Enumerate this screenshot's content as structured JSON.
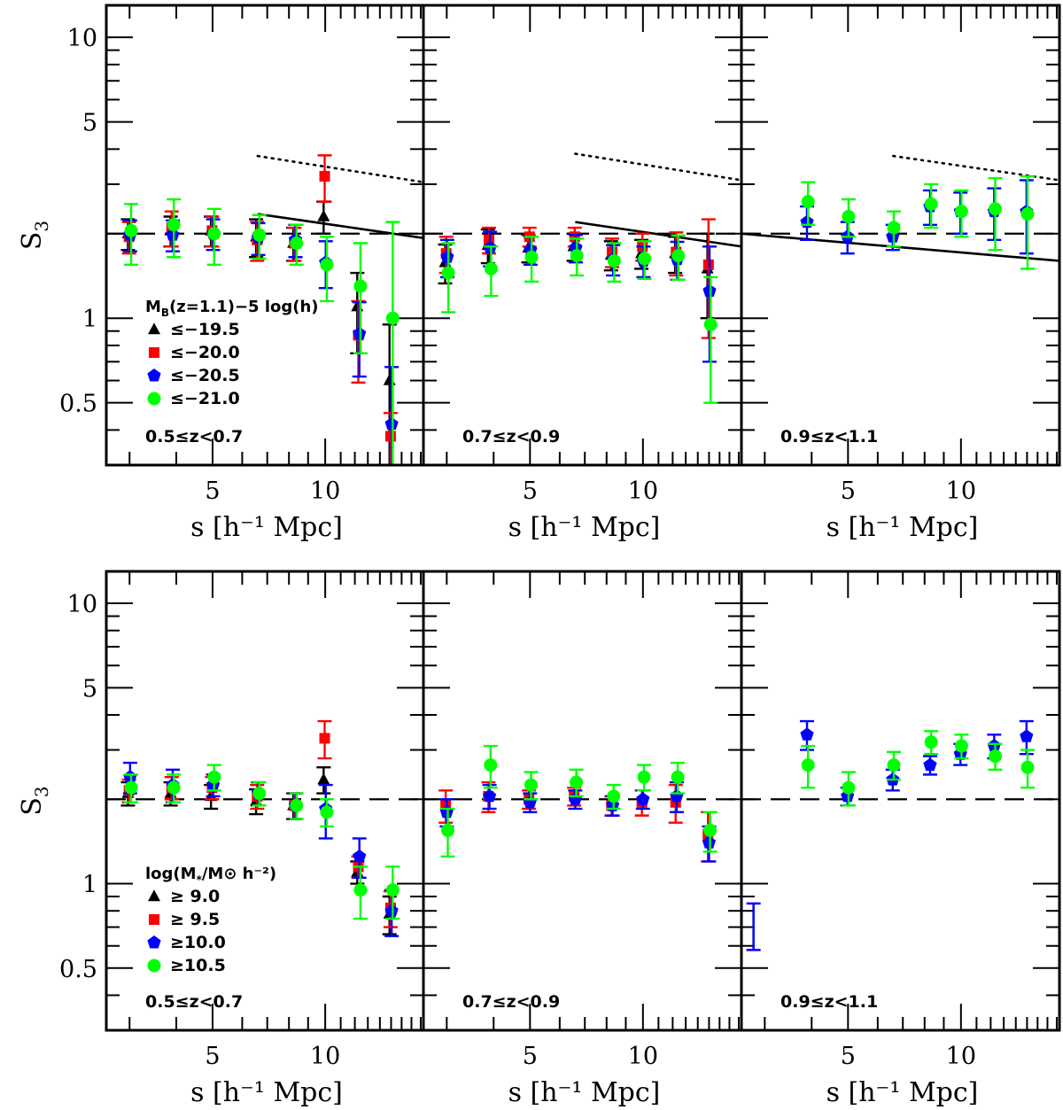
{
  "chart_data": [
    {
      "type": "scatter",
      "panel": "top-left",
      "redshift_label": "0.5≤z<0.7",
      "ylabel": "S",
      "ylabel_sub": "3",
      "xlabel": "s [h⁻¹ Mpc]",
      "xlim": [
        2.6,
        18.3
      ],
      "ylim": [
        0.3,
        13.0
      ],
      "xscale": "log",
      "yscale": "log",
      "x_ticks": [
        "5",
        "10"
      ],
      "y_ticks": [
        "0.5",
        "1",
        "5",
        "10"
      ],
      "legend": {
        "title": "M",
        "title_sub": "B",
        "title_rest": "(z=1.1)−5 log(h)",
        "entries": [
          "≤−19.5",
          "≤−20.0",
          "≤−20.5",
          "≤−21.0"
        ]
      },
      "reference_line": 2.0,
      "model_solid": [
        [
          6.6,
          2.35
        ],
        [
          18.3,
          1.93
        ]
      ],
      "model_dotted": [
        [
          6.6,
          3.78
        ],
        [
          18.3,
          3.05
        ]
      ],
      "series": [
        {
          "name": "≤−19.5",
          "color": "#000000",
          "marker": "triangle",
          "points": [
            [
              3.0,
              2.0,
              0.25
            ],
            [
              3.9,
              2.05,
              0.25
            ],
            [
              5.0,
              2.05,
              0.25
            ],
            [
              6.6,
              1.95,
              0.3
            ],
            [
              8.3,
              1.85,
              0.25
            ],
            [
              10.0,
              2.3,
              0.3
            ],
            [
              12.3,
              1.1,
              0.35
            ],
            [
              15.0,
              0.6,
              0.35
            ]
          ]
        },
        {
          "name": "≤−20.0",
          "color": "#ff0000",
          "marker": "square",
          "points": [
            [
              3.0,
              1.95,
              0.25
            ],
            [
              3.9,
              2.1,
              0.3
            ],
            [
              5.0,
              2.05,
              0.25
            ],
            [
              6.6,
              1.9,
              0.3
            ],
            [
              8.3,
              1.85,
              0.25
            ],
            [
              10.0,
              3.2,
              0.6
            ],
            [
              12.3,
              0.87,
              0.28
            ],
            [
              15.0,
              0.38,
              0.08
            ]
          ]
        },
        {
          "name": "≤−20.5",
          "color": "#0000ff",
          "marker": "pentagon",
          "points": [
            [
              3.0,
              1.98,
              0.25
            ],
            [
              3.9,
              1.98,
              0.25
            ],
            [
              5.0,
              2.0,
              0.25
            ],
            [
              6.6,
              1.93,
              0.25
            ],
            [
              8.3,
              1.9,
              0.25
            ],
            [
              10.0,
              1.58,
              0.3
            ],
            [
              12.3,
              0.88,
              0.26
            ],
            [
              15.0,
              0.42,
              0.25
            ]
          ]
        },
        {
          "name": "≤−21.0",
          "color": "#00ff00",
          "marker": "circle",
          "points": [
            [
              3.0,
              2.05,
              0.5
            ],
            [
              3.9,
              2.15,
              0.5
            ],
            [
              5.0,
              2.0,
              0.45
            ],
            [
              6.6,
              1.98,
              0.35
            ],
            [
              8.3,
              1.85,
              0.3
            ],
            [
              10.0,
              1.55,
              0.4
            ],
            [
              12.3,
              1.3,
              0.55
            ],
            [
              15.0,
              1.0,
              1.2
            ]
          ]
        }
      ]
    },
    {
      "type": "scatter",
      "panel": "top-middle",
      "redshift_label": "0.7≤z<0.9",
      "xlabel": "s [h⁻¹ Mpc]",
      "xlim": [
        2.6,
        18.3
      ],
      "ylim": [
        0.3,
        13.0
      ],
      "xscale": "log",
      "yscale": "log",
      "x_ticks": [
        "5",
        "10"
      ],
      "reference_line": 2.0,
      "model_solid": [
        [
          6.6,
          2.2
        ],
        [
          18.3,
          1.8
        ]
      ],
      "model_dotted": [
        [
          6.6,
          3.85
        ],
        [
          18.3,
          3.1
        ]
      ],
      "series": [
        {
          "name": "≤−19.5",
          "color": "#000000",
          "marker": "triangle",
          "points": [
            [
              3.0,
              1.58,
              0.25
            ],
            [
              3.9,
              1.82,
              0.25
            ],
            [
              5.0,
              1.78,
              0.2
            ],
            [
              6.6,
              1.8,
              0.2
            ],
            [
              8.3,
              1.68,
              0.2
            ],
            [
              10.0,
              1.7,
              0.2
            ],
            [
              12.3,
              1.7,
              0.25
            ],
            [
              15.0,
              1.5,
              0.5
            ]
          ]
        },
        {
          "name": "≤−20.0",
          "color": "#ff0000",
          "marker": "square",
          "points": [
            [
              3.0,
              1.7,
              0.25
            ],
            [
              3.9,
              1.9,
              0.2
            ],
            [
              5.0,
              1.95,
              0.15
            ],
            [
              6.6,
              1.95,
              0.15
            ],
            [
              8.3,
              1.72,
              0.2
            ],
            [
              10.0,
              1.8,
              0.2
            ],
            [
              12.3,
              1.72,
              0.3
            ],
            [
              15.0,
              1.55,
              0.7
            ]
          ]
        },
        {
          "name": "≤−20.5",
          "color": "#0000ff",
          "marker": "pentagon",
          "points": [
            [
              3.0,
              1.65,
              0.25
            ],
            [
              3.9,
              1.78,
              0.25
            ],
            [
              5.0,
              1.75,
              0.2
            ],
            [
              6.6,
              1.78,
              0.2
            ],
            [
              8.3,
              1.62,
              0.2
            ],
            [
              10.0,
              1.6,
              0.2
            ],
            [
              12.3,
              1.62,
              0.25
            ],
            [
              15.0,
              1.25,
              0.55
            ]
          ]
        },
        {
          "name": "≤−21.0",
          "color": "#00ff00",
          "marker": "circle",
          "points": [
            [
              3.0,
              1.45,
              0.4
            ],
            [
              3.9,
              1.5,
              0.3
            ],
            [
              5.0,
              1.65,
              0.3
            ],
            [
              6.6,
              1.67,
              0.25
            ],
            [
              8.3,
              1.6,
              0.25
            ],
            [
              10.0,
              1.63,
              0.25
            ],
            [
              12.3,
              1.67,
              0.3
            ],
            [
              15.0,
              0.95,
              0.45
            ]
          ]
        }
      ]
    },
    {
      "type": "scatter",
      "panel": "top-right",
      "redshift_label": "0.9≤z<1.1",
      "xlabel": "s [h⁻¹ Mpc]",
      "xlim": [
        2.6,
        18.3
      ],
      "ylim": [
        0.3,
        13.0
      ],
      "xscale": "log",
      "yscale": "log",
      "x_ticks": [
        "5",
        "10"
      ],
      "reference_line": 2.0,
      "model_solid": [
        [
          2.6,
          2.0
        ],
        [
          18.3,
          1.6
        ]
      ],
      "model_dotted": [
        [
          6.6,
          3.78
        ],
        [
          18.3,
          3.1
        ]
      ],
      "series": [
        {
          "name": "≤−20.5",
          "color": "#0000ff",
          "marker": "pentagon",
          "points": [
            [
              3.9,
              2.2,
              0.3
            ],
            [
              5.0,
              1.95,
              0.25
            ],
            [
              6.6,
              1.95,
              0.2
            ],
            [
              8.3,
              2.5,
              0.35
            ],
            [
              10.0,
              2.4,
              0.4
            ],
            [
              12.3,
              2.4,
              0.5
            ],
            [
              15.0,
              2.4,
              0.7
            ]
          ]
        },
        {
          "name": "≤−21.0",
          "color": "#00ff00",
          "marker": "circle",
          "points": [
            [
              3.9,
              2.6,
              0.45
            ],
            [
              5.0,
              2.3,
              0.35
            ],
            [
              6.6,
              2.1,
              0.3
            ],
            [
              8.3,
              2.55,
              0.45
            ],
            [
              10.0,
              2.4,
              0.45
            ],
            [
              12.3,
              2.45,
              0.7
            ],
            [
              15.0,
              2.35,
              0.85
            ]
          ]
        }
      ]
    },
    {
      "type": "scatter",
      "panel": "bottom-left",
      "redshift_label": "0.5≤z<0.7",
      "ylabel": "S",
      "ylabel_sub": "3",
      "xlabel": "s [h⁻¹ Mpc]",
      "xlim": [
        2.6,
        18.3
      ],
      "ylim": [
        0.3,
        13.0
      ],
      "xscale": "log",
      "yscale": "log",
      "x_ticks": [
        "5",
        "10"
      ],
      "y_ticks": [
        "0.5",
        "1",
        "5",
        "10"
      ],
      "legend": {
        "title": "log(M",
        "title_sub": "*",
        "title_rest": "/M⊙ h⁻²)",
        "entries": [
          "≥ 9.0",
          "≥ 9.5",
          "≥10.0",
          "≥10.5"
        ]
      },
      "reference_line": 2.0,
      "series": [
        {
          "name": "≥ 9.0",
          "color": "#000000",
          "marker": "triangle",
          "points": [
            [
              3.0,
              2.1,
              0.2
            ],
            [
              3.9,
              2.1,
              0.2
            ],
            [
              5.0,
              2.05,
              0.2
            ],
            [
              6.6,
              1.97,
              0.2
            ],
            [
              8.3,
              1.9,
              0.2
            ],
            [
              10.0,
              2.35,
              0.25
            ],
            [
              12.3,
              1.1,
              0.1
            ],
            [
              15.0,
              0.78,
              0.12
            ]
          ]
        },
        {
          "name": "≥ 9.5",
          "color": "#ff0000",
          "marker": "square",
          "points": [
            [
              3.0,
              2.15,
              0.2
            ],
            [
              3.9,
              2.2,
              0.2
            ],
            [
              5.0,
              2.2,
              0.2
            ],
            [
              6.6,
              2.05,
              0.2
            ],
            [
              8.3,
              1.9,
              0.2
            ],
            [
              10.0,
              3.3,
              0.5
            ],
            [
              12.3,
              1.15,
              0.1
            ],
            [
              15.0,
              0.82,
              0.12
            ]
          ]
        },
        {
          "name": "≥10.0",
          "color": "#0000ff",
          "marker": "pentagon",
          "points": [
            [
              3.0,
              2.4,
              0.3
            ],
            [
              3.9,
              2.25,
              0.3
            ],
            [
              5.0,
              2.25,
              0.2
            ],
            [
              6.6,
              2.1,
              0.2
            ],
            [
              8.3,
              1.9,
              0.2
            ],
            [
              10.0,
              1.85,
              0.4
            ],
            [
              12.3,
              1.25,
              0.2
            ],
            [
              15.0,
              0.8,
              0.15
            ]
          ]
        },
        {
          "name": "≥10.5",
          "color": "#00ff00",
          "marker": "circle",
          "points": [
            [
              3.0,
              2.2,
              0.25
            ],
            [
              3.9,
              2.2,
              0.25
            ],
            [
              5.0,
              2.4,
              0.25
            ],
            [
              6.6,
              2.1,
              0.2
            ],
            [
              8.3,
              1.9,
              0.2
            ],
            [
              10.0,
              1.8,
              0.2
            ],
            [
              12.3,
              0.95,
              0.2
            ],
            [
              15.0,
              0.95,
              0.2
            ]
          ]
        }
      ]
    },
    {
      "type": "scatter",
      "panel": "bottom-middle",
      "redshift_label": "0.7≤z<0.9",
      "xlabel": "s [h⁻¹ Mpc]",
      "xlim": [
        2.6,
        18.3
      ],
      "ylim": [
        0.3,
        13.0
      ],
      "xscale": "log",
      "yscale": "log",
      "x_ticks": [
        "5",
        "10"
      ],
      "reference_line": 2.0,
      "series": [
        {
          "name": "≥ 9.5",
          "color": "#ff0000",
          "marker": "square",
          "points": [
            [
              3.0,
              1.9,
              0.25
            ],
            [
              3.9,
              2.05,
              0.25
            ],
            [
              5.0,
              2.0,
              0.15
            ],
            [
              6.6,
              2.05,
              0.15
            ],
            [
              8.3,
              1.9,
              0.15
            ],
            [
              10.0,
              1.95,
              0.2
            ],
            [
              12.3,
              1.95,
              0.3
            ],
            [
              15.0,
              1.5,
              0.3
            ]
          ]
        },
        {
          "name": "≥10.0",
          "color": "#0000ff",
          "marker": "pentagon",
          "points": [
            [
              3.0,
              1.8,
              0.2
            ],
            [
              3.9,
              2.05,
              0.2
            ],
            [
              5.0,
              1.95,
              0.15
            ],
            [
              6.6,
              2.0,
              0.15
            ],
            [
              8.3,
              1.9,
              0.15
            ],
            [
              10.0,
              2.0,
              0.15
            ],
            [
              12.3,
              2.05,
              0.25
            ],
            [
              15.0,
              1.4,
              0.2
            ]
          ]
        },
        {
          "name": "≥10.5",
          "color": "#00ff00",
          "marker": "circle",
          "points": [
            [
              3.0,
              1.55,
              0.3
            ],
            [
              3.9,
              2.65,
              0.45
            ],
            [
              5.0,
              2.25,
              0.25
            ],
            [
              6.6,
              2.3,
              0.25
            ],
            [
              8.3,
              2.05,
              0.2
            ],
            [
              10.0,
              2.4,
              0.25
            ],
            [
              12.3,
              2.4,
              0.3
            ],
            [
              15.0,
              1.55,
              0.25
            ]
          ]
        }
      ]
    },
    {
      "type": "scatter",
      "panel": "bottom-right",
      "redshift_label": "0.9≤z<1.1",
      "xlabel": "s [h⁻¹ Mpc]",
      "xlim": [
        2.6,
        18.3
      ],
      "ylim": [
        0.3,
        13.0
      ],
      "xscale": "log",
      "yscale": "log",
      "x_ticks": [
        "5",
        "10"
      ],
      "reference_line": 2.0,
      "typical_error_bar": {
        "x": 2.8,
        "low": 0.58,
        "high": 0.85
      },
      "series": [
        {
          "name": "≥10.0",
          "color": "#0000ff",
          "marker": "pentagon",
          "points": [
            [
              3.9,
              3.4,
              0.4
            ],
            [
              5.0,
              2.05,
              0.15
            ],
            [
              6.6,
              2.35,
              0.2
            ],
            [
              8.3,
              2.65,
              0.2
            ],
            [
              10.0,
              2.9,
              0.25
            ],
            [
              12.3,
              3.1,
              0.3
            ],
            [
              15.0,
              3.35,
              0.45
            ]
          ]
        },
        {
          "name": "≥10.5",
          "color": "#00ff00",
          "marker": "circle",
          "points": [
            [
              3.9,
              2.65,
              0.45
            ],
            [
              5.0,
              2.2,
              0.3
            ],
            [
              6.6,
              2.65,
              0.3
            ],
            [
              8.3,
              3.2,
              0.3
            ],
            [
              10.0,
              3.1,
              0.3
            ],
            [
              12.3,
              2.85,
              0.3
            ],
            [
              15.0,
              2.6,
              0.4
            ]
          ]
        }
      ]
    }
  ]
}
